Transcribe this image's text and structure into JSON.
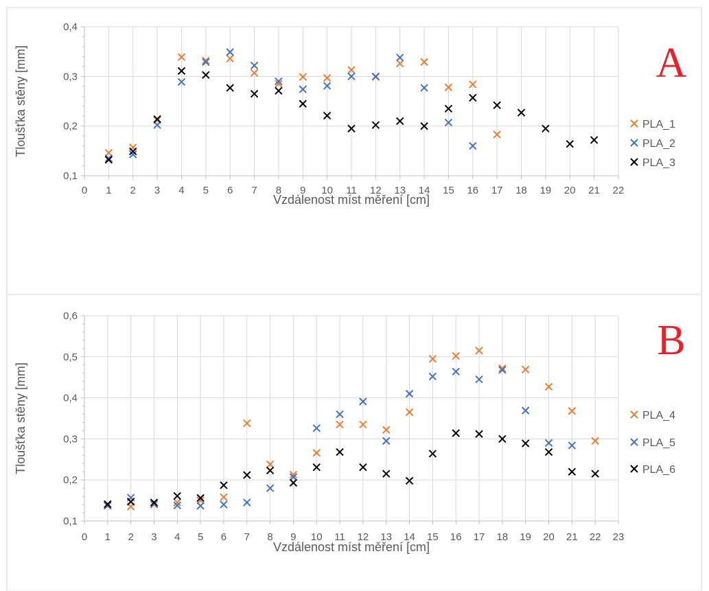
{
  "colors": {
    "series1": "#ed7d31",
    "series2": "#4472c4",
    "series3": "#000000",
    "grid": "#d9d9d9",
    "axis": "#bfbfbf",
    "text": "#595959",
    "panel_letter": "#e8202a"
  },
  "chart_data": [
    {
      "type": "scatter",
      "panel_label": "A",
      "xlabel": "Vzdálenost míst měření  [cm]",
      "ylabel": "Tloušťka stěny [mm]",
      "xlim": [
        0,
        22
      ],
      "ylim": [
        0.1,
        0.4
      ],
      "x_ticks": [
        "0",
        "1",
        "2",
        "3",
        "4",
        "5",
        "6",
        "7",
        "8",
        "9",
        "10",
        "11",
        "12",
        "13",
        "14",
        "15",
        "16",
        "17",
        "18",
        "19",
        "20",
        "21",
        "22"
      ],
      "y_ticks": [
        "0,1",
        "0,2",
        "0,3",
        "0,4"
      ],
      "grid": "vertical and horizontal",
      "legend_position": "right",
      "series": [
        {
          "name": "PLA_1",
          "x": [
            1,
            2,
            3,
            4,
            5,
            6,
            7,
            8,
            9,
            10,
            11,
            12,
            13,
            14,
            15,
            16,
            17
          ],
          "y": [
            0.146,
            0.157,
            0.212,
            0.339,
            0.332,
            0.336,
            0.307,
            0.285,
            0.299,
            0.297,
            0.313,
            0.299,
            0.326,
            0.329,
            0.278,
            0.284,
            0.183
          ]
        },
        {
          "name": "PLA_2",
          "x": [
            1,
            2,
            3,
            4,
            5,
            6,
            7,
            8,
            9,
            10,
            11,
            12,
            13,
            14,
            15,
            16
          ],
          "y": [
            0.135,
            0.143,
            0.202,
            0.289,
            0.329,
            0.349,
            0.322,
            0.29,
            0.274,
            0.281,
            0.3,
            0.3,
            0.338,
            0.277,
            0.207,
            0.16
          ]
        },
        {
          "name": "PLA_3",
          "x": [
            1,
            2,
            3,
            4,
            5,
            6,
            7,
            8,
            9,
            10,
            11,
            12,
            13,
            14,
            15,
            16,
            17,
            18,
            19,
            20,
            21
          ],
          "y": [
            0.132,
            0.149,
            0.214,
            0.311,
            0.303,
            0.277,
            0.265,
            0.271,
            0.245,
            0.221,
            0.195,
            0.202,
            0.21,
            0.2,
            0.235,
            0.257,
            0.242,
            0.227,
            0.195,
            0.164,
            0.172
          ]
        }
      ]
    },
    {
      "type": "scatter",
      "panel_label": "B",
      "xlabel": "Vzdálenost míst měření  [cm]",
      "ylabel": "Tloušťka stěny [mm]",
      "xlim": [
        0,
        23
      ],
      "ylim": [
        0.1,
        0.6
      ],
      "x_ticks": [
        "0",
        "1",
        "2",
        "3",
        "4",
        "5",
        "6",
        "7",
        "8",
        "9",
        "10",
        "11",
        "12",
        "13",
        "14",
        "15",
        "16",
        "17",
        "18",
        "19",
        "20",
        "21",
        "22",
        "23"
      ],
      "y_ticks": [
        "0,1",
        "0,2",
        "0,3",
        "0,4",
        "0,5",
        "0,6"
      ],
      "grid": "vertical and horizontal",
      "legend_position": "right",
      "series": [
        {
          "name": "PLA_4",
          "x": [
            1,
            2,
            3,
            4,
            5,
            6,
            7,
            8,
            9,
            10,
            11,
            12,
            13,
            14,
            15,
            16,
            17,
            18,
            19,
            20,
            21,
            22
          ],
          "y": [
            0.137,
            0.135,
            0.14,
            0.145,
            0.15,
            0.158,
            0.338,
            0.238,
            0.213,
            0.266,
            0.335,
            0.335,
            0.322,
            0.365,
            0.495,
            0.502,
            0.515,
            0.472,
            0.469,
            0.427,
            0.368,
            0.295
          ]
        },
        {
          "name": "PLA_5",
          "x": [
            1,
            2,
            3,
            4,
            5,
            6,
            7,
            8,
            9,
            10,
            11,
            12,
            13,
            14,
            15,
            16,
            17,
            18,
            19,
            20,
            21
          ],
          "y": [
            0.138,
            0.157,
            0.142,
            0.138,
            0.137,
            0.14,
            0.145,
            0.18,
            0.207,
            0.326,
            0.36,
            0.391,
            0.295,
            0.41,
            0.452,
            0.464,
            0.445,
            0.468,
            0.369,
            0.29,
            0.284
          ]
        },
        {
          "name": "PLA_6",
          "x": [
            1,
            2,
            3,
            4,
            5,
            6,
            7,
            8,
            9,
            10,
            11,
            12,
            13,
            14,
            15,
            16,
            17,
            18,
            19,
            20,
            21,
            22
          ],
          "y": [
            0.141,
            0.147,
            0.145,
            0.161,
            0.156,
            0.187,
            0.212,
            0.223,
            0.193,
            0.231,
            0.268,
            0.231,
            0.215,
            0.198,
            0.264,
            0.314,
            0.312,
            0.3,
            0.289,
            0.268,
            0.22,
            0.215
          ]
        }
      ]
    }
  ]
}
